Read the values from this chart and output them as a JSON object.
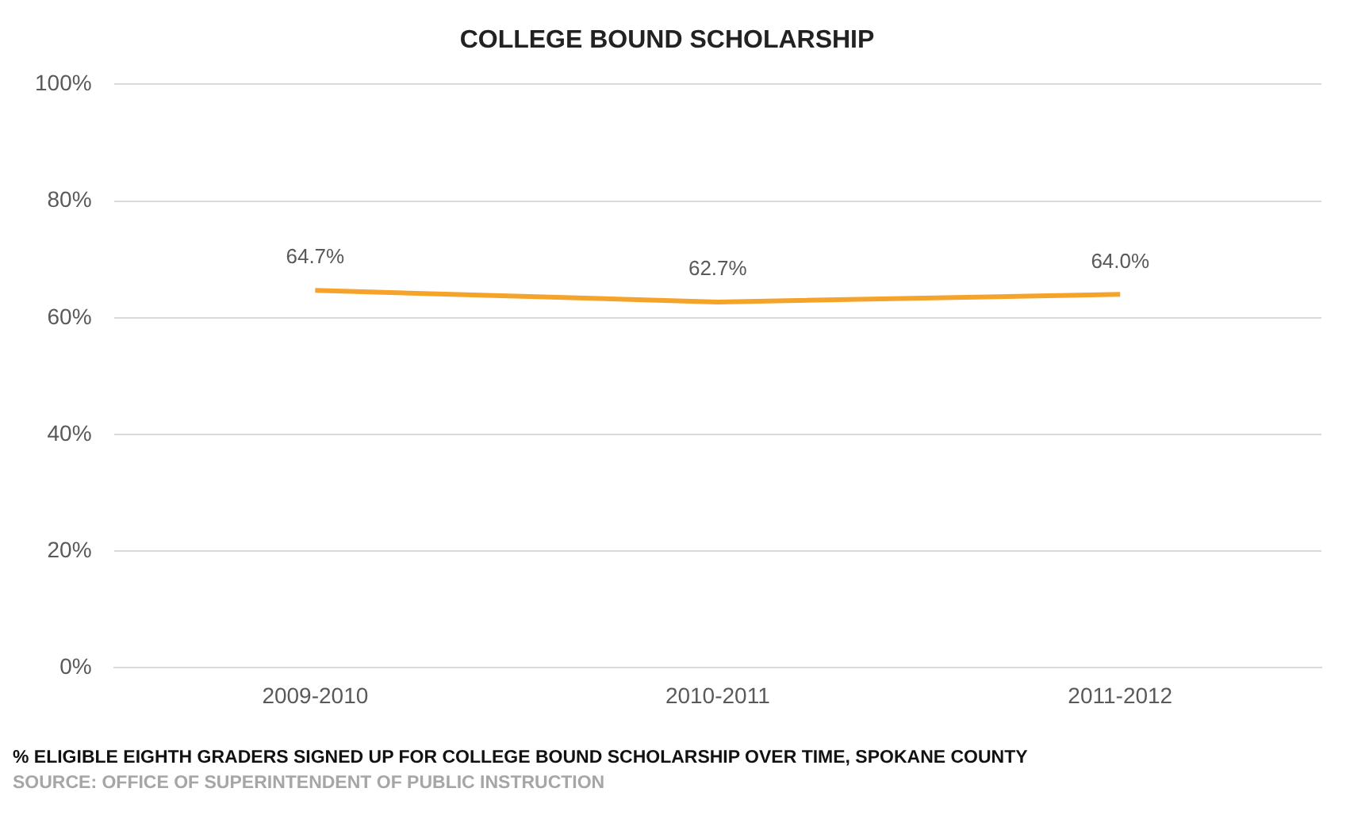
{
  "chart_data": {
    "type": "line",
    "title": "COLLEGE BOUND SCHOLARSHIP",
    "categories": [
      "2009-2010",
      "2010-2011",
      "2011-2012"
    ],
    "series": [
      {
        "color": "#f5a32a",
        "values": [
          64.7,
          62.7,
          64.0
        ],
        "value_labels": [
          "64.7%",
          "62.7%",
          "64.0%"
        ]
      }
    ],
    "ylim": [
      0,
      100
    ],
    "yticks": [
      {
        "value": 0,
        "label": "0%"
      },
      {
        "value": 20,
        "label": "20%"
      },
      {
        "value": 40,
        "label": "40%"
      },
      {
        "value": 60,
        "label": "60%"
      },
      {
        "value": 80,
        "label": "80%"
      },
      {
        "value": 100,
        "label": "100%"
      }
    ],
    "grid": "y",
    "marker": "none",
    "line_style": "solid",
    "legend": false,
    "annotations": [
      "% ELIGIBLE EIGHTH GRADERS SIGNED UP FOR COLLEGE BOUND SCHOLARSHIP OVER TIME, SPOKANE COUNTY",
      "SOURCE: OFFICE OF SUPERINTENDENT OF PUBLIC INSTRUCTION"
    ]
  }
}
